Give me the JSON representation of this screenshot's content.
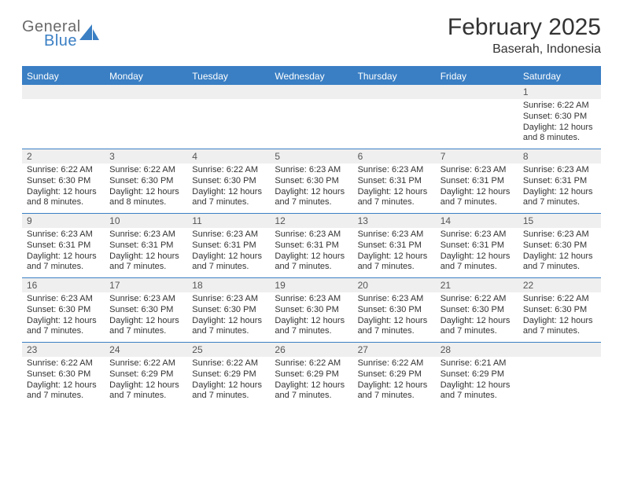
{
  "logo": {
    "line1": "General",
    "line2": "Blue",
    "gray": "#6a6a6a",
    "blue": "#3a7fc4"
  },
  "title": "February 2025",
  "subtitle": "Baserah, Indonesia",
  "colors": {
    "header_bg": "#3a7fc4",
    "daynum_bg": "#efefef",
    "rule": "#3a7fc4",
    "text": "#333333"
  },
  "weekdays": [
    "Sunday",
    "Monday",
    "Tuesday",
    "Wednesday",
    "Thursday",
    "Friday",
    "Saturday"
  ],
  "weeks": [
    [
      {
        "num": "",
        "lines": []
      },
      {
        "num": "",
        "lines": []
      },
      {
        "num": "",
        "lines": []
      },
      {
        "num": "",
        "lines": []
      },
      {
        "num": "",
        "lines": []
      },
      {
        "num": "",
        "lines": []
      },
      {
        "num": "1",
        "lines": [
          "Sunrise: 6:22 AM",
          "Sunset: 6:30 PM",
          "Daylight: 12 hours and 8 minutes."
        ]
      }
    ],
    [
      {
        "num": "2",
        "lines": [
          "Sunrise: 6:22 AM",
          "Sunset: 6:30 PM",
          "Daylight: 12 hours and 8 minutes."
        ]
      },
      {
        "num": "3",
        "lines": [
          "Sunrise: 6:22 AM",
          "Sunset: 6:30 PM",
          "Daylight: 12 hours and 8 minutes."
        ]
      },
      {
        "num": "4",
        "lines": [
          "Sunrise: 6:22 AM",
          "Sunset: 6:30 PM",
          "Daylight: 12 hours and 7 minutes."
        ]
      },
      {
        "num": "5",
        "lines": [
          "Sunrise: 6:23 AM",
          "Sunset: 6:30 PM",
          "Daylight: 12 hours and 7 minutes."
        ]
      },
      {
        "num": "6",
        "lines": [
          "Sunrise: 6:23 AM",
          "Sunset: 6:31 PM",
          "Daylight: 12 hours and 7 minutes."
        ]
      },
      {
        "num": "7",
        "lines": [
          "Sunrise: 6:23 AM",
          "Sunset: 6:31 PM",
          "Daylight: 12 hours and 7 minutes."
        ]
      },
      {
        "num": "8",
        "lines": [
          "Sunrise: 6:23 AM",
          "Sunset: 6:31 PM",
          "Daylight: 12 hours and 7 minutes."
        ]
      }
    ],
    [
      {
        "num": "9",
        "lines": [
          "Sunrise: 6:23 AM",
          "Sunset: 6:31 PM",
          "Daylight: 12 hours and 7 minutes."
        ]
      },
      {
        "num": "10",
        "lines": [
          "Sunrise: 6:23 AM",
          "Sunset: 6:31 PM",
          "Daylight: 12 hours and 7 minutes."
        ]
      },
      {
        "num": "11",
        "lines": [
          "Sunrise: 6:23 AM",
          "Sunset: 6:31 PM",
          "Daylight: 12 hours and 7 minutes."
        ]
      },
      {
        "num": "12",
        "lines": [
          "Sunrise: 6:23 AM",
          "Sunset: 6:31 PM",
          "Daylight: 12 hours and 7 minutes."
        ]
      },
      {
        "num": "13",
        "lines": [
          "Sunrise: 6:23 AM",
          "Sunset: 6:31 PM",
          "Daylight: 12 hours and 7 minutes."
        ]
      },
      {
        "num": "14",
        "lines": [
          "Sunrise: 6:23 AM",
          "Sunset: 6:31 PM",
          "Daylight: 12 hours and 7 minutes."
        ]
      },
      {
        "num": "15",
        "lines": [
          "Sunrise: 6:23 AM",
          "Sunset: 6:30 PM",
          "Daylight: 12 hours and 7 minutes."
        ]
      }
    ],
    [
      {
        "num": "16",
        "lines": [
          "Sunrise: 6:23 AM",
          "Sunset: 6:30 PM",
          "Daylight: 12 hours and 7 minutes."
        ]
      },
      {
        "num": "17",
        "lines": [
          "Sunrise: 6:23 AM",
          "Sunset: 6:30 PM",
          "Daylight: 12 hours and 7 minutes."
        ]
      },
      {
        "num": "18",
        "lines": [
          "Sunrise: 6:23 AM",
          "Sunset: 6:30 PM",
          "Daylight: 12 hours and 7 minutes."
        ]
      },
      {
        "num": "19",
        "lines": [
          "Sunrise: 6:23 AM",
          "Sunset: 6:30 PM",
          "Daylight: 12 hours and 7 minutes."
        ]
      },
      {
        "num": "20",
        "lines": [
          "Sunrise: 6:23 AM",
          "Sunset: 6:30 PM",
          "Daylight: 12 hours and 7 minutes."
        ]
      },
      {
        "num": "21",
        "lines": [
          "Sunrise: 6:22 AM",
          "Sunset: 6:30 PM",
          "Daylight: 12 hours and 7 minutes."
        ]
      },
      {
        "num": "22",
        "lines": [
          "Sunrise: 6:22 AM",
          "Sunset: 6:30 PM",
          "Daylight: 12 hours and 7 minutes."
        ]
      }
    ],
    [
      {
        "num": "23",
        "lines": [
          "Sunrise: 6:22 AM",
          "Sunset: 6:30 PM",
          "Daylight: 12 hours and 7 minutes."
        ]
      },
      {
        "num": "24",
        "lines": [
          "Sunrise: 6:22 AM",
          "Sunset: 6:29 PM",
          "Daylight: 12 hours and 7 minutes."
        ]
      },
      {
        "num": "25",
        "lines": [
          "Sunrise: 6:22 AM",
          "Sunset: 6:29 PM",
          "Daylight: 12 hours and 7 minutes."
        ]
      },
      {
        "num": "26",
        "lines": [
          "Sunrise: 6:22 AM",
          "Sunset: 6:29 PM",
          "Daylight: 12 hours and 7 minutes."
        ]
      },
      {
        "num": "27",
        "lines": [
          "Sunrise: 6:22 AM",
          "Sunset: 6:29 PM",
          "Daylight: 12 hours and 7 minutes."
        ]
      },
      {
        "num": "28",
        "lines": [
          "Sunrise: 6:21 AM",
          "Sunset: 6:29 PM",
          "Daylight: 12 hours and 7 minutes."
        ]
      },
      {
        "num": "",
        "lines": []
      }
    ]
  ]
}
